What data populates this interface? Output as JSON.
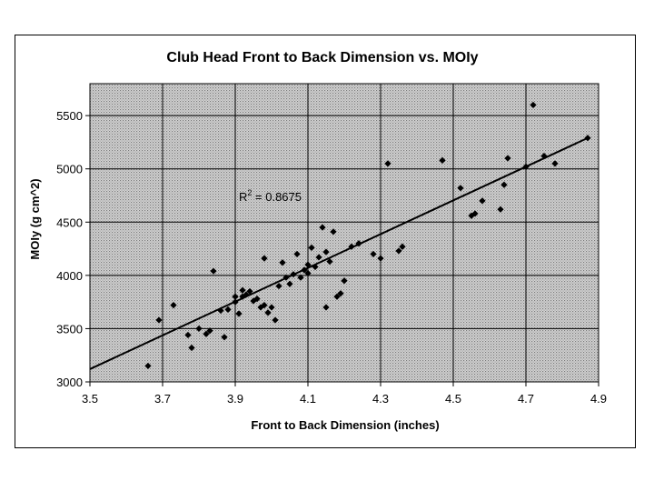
{
  "chart_data": {
    "type": "scatter",
    "title": "Club Head Front to Back Dimension vs. MOIy",
    "xlabel": "Front to Back Dimension (inches)",
    "ylabel": "MOIy (g cm^2)",
    "xlim": [
      3.5,
      4.9
    ],
    "ylim": [
      3000,
      5800
    ],
    "x_ticks": [
      3.5,
      3.7,
      3.9,
      4.1,
      4.3,
      4.5,
      4.7,
      4.9
    ],
    "x_tick_labels": [
      "3.5",
      "3.7",
      "3.9",
      "4.1",
      "4.3",
      "4.5",
      "4.7",
      "4.9"
    ],
    "y_ticks": [
      3000,
      3500,
      4000,
      4500,
      5000,
      5500
    ],
    "y_tick_labels": [
      "3000",
      "3500",
      "4000",
      "4500",
      "5000",
      "5500"
    ],
    "grid": true,
    "legend": "none",
    "annotation": {
      "text": "R",
      "superscript": "2",
      "rest": " = 0.8675",
      "x": 3.91,
      "y": 4700
    },
    "trendline": {
      "x": [
        3.5,
        4.87
      ],
      "y": [
        3120,
        5290
      ]
    },
    "series": [
      {
        "points": [
          [
            3.66,
            3150
          ],
          [
            3.69,
            3580
          ],
          [
            3.73,
            3720
          ],
          [
            3.77,
            3440
          ],
          [
            3.78,
            3320
          ],
          [
            3.8,
            3500
          ],
          [
            3.82,
            3450
          ],
          [
            3.83,
            3480
          ],
          [
            3.84,
            4040
          ],
          [
            3.86,
            3670
          ],
          [
            3.87,
            3420
          ],
          [
            3.88,
            3680
          ],
          [
            3.9,
            3800
          ],
          [
            3.9,
            3750
          ],
          [
            3.91,
            3640
          ],
          [
            3.92,
            3800
          ],
          [
            3.92,
            3860
          ],
          [
            3.93,
            3820
          ],
          [
            3.94,
            3850
          ],
          [
            3.95,
            3760
          ],
          [
            3.96,
            3780
          ],
          [
            3.97,
            3700
          ],
          [
            3.98,
            3720
          ],
          [
            3.98,
            4160
          ],
          [
            3.99,
            3650
          ],
          [
            4.0,
            3700
          ],
          [
            4.01,
            3580
          ],
          [
            4.02,
            3900
          ],
          [
            4.03,
            4120
          ],
          [
            4.04,
            3980
          ],
          [
            4.05,
            3920
          ],
          [
            4.06,
            4010
          ],
          [
            4.07,
            4200
          ],
          [
            4.08,
            3980
          ],
          [
            4.09,
            4050
          ],
          [
            4.1,
            4100
          ],
          [
            4.1,
            4020
          ],
          [
            4.11,
            4260
          ],
          [
            4.12,
            4080
          ],
          [
            4.13,
            4170
          ],
          [
            4.14,
            4450
          ],
          [
            4.15,
            4220
          ],
          [
            4.15,
            3700
          ],
          [
            4.16,
            4130
          ],
          [
            4.17,
            4410
          ],
          [
            4.18,
            3800
          ],
          [
            4.19,
            3830
          ],
          [
            4.2,
            3950
          ],
          [
            4.22,
            4270
          ],
          [
            4.24,
            4300
          ],
          [
            4.28,
            4200
          ],
          [
            4.3,
            4160
          ],
          [
            4.32,
            5050
          ],
          [
            4.35,
            4230
          ],
          [
            4.36,
            4270
          ],
          [
            4.47,
            5080
          ],
          [
            4.52,
            4820
          ],
          [
            4.55,
            4560
          ],
          [
            4.56,
            4580
          ],
          [
            4.58,
            4700
          ],
          [
            4.63,
            4620
          ],
          [
            4.64,
            4850
          ],
          [
            4.65,
            5100
          ],
          [
            4.7,
            5020
          ],
          [
            4.72,
            5600
          ],
          [
            4.75,
            5120
          ],
          [
            4.78,
            5050
          ],
          [
            4.87,
            5290
          ]
        ]
      }
    ]
  }
}
